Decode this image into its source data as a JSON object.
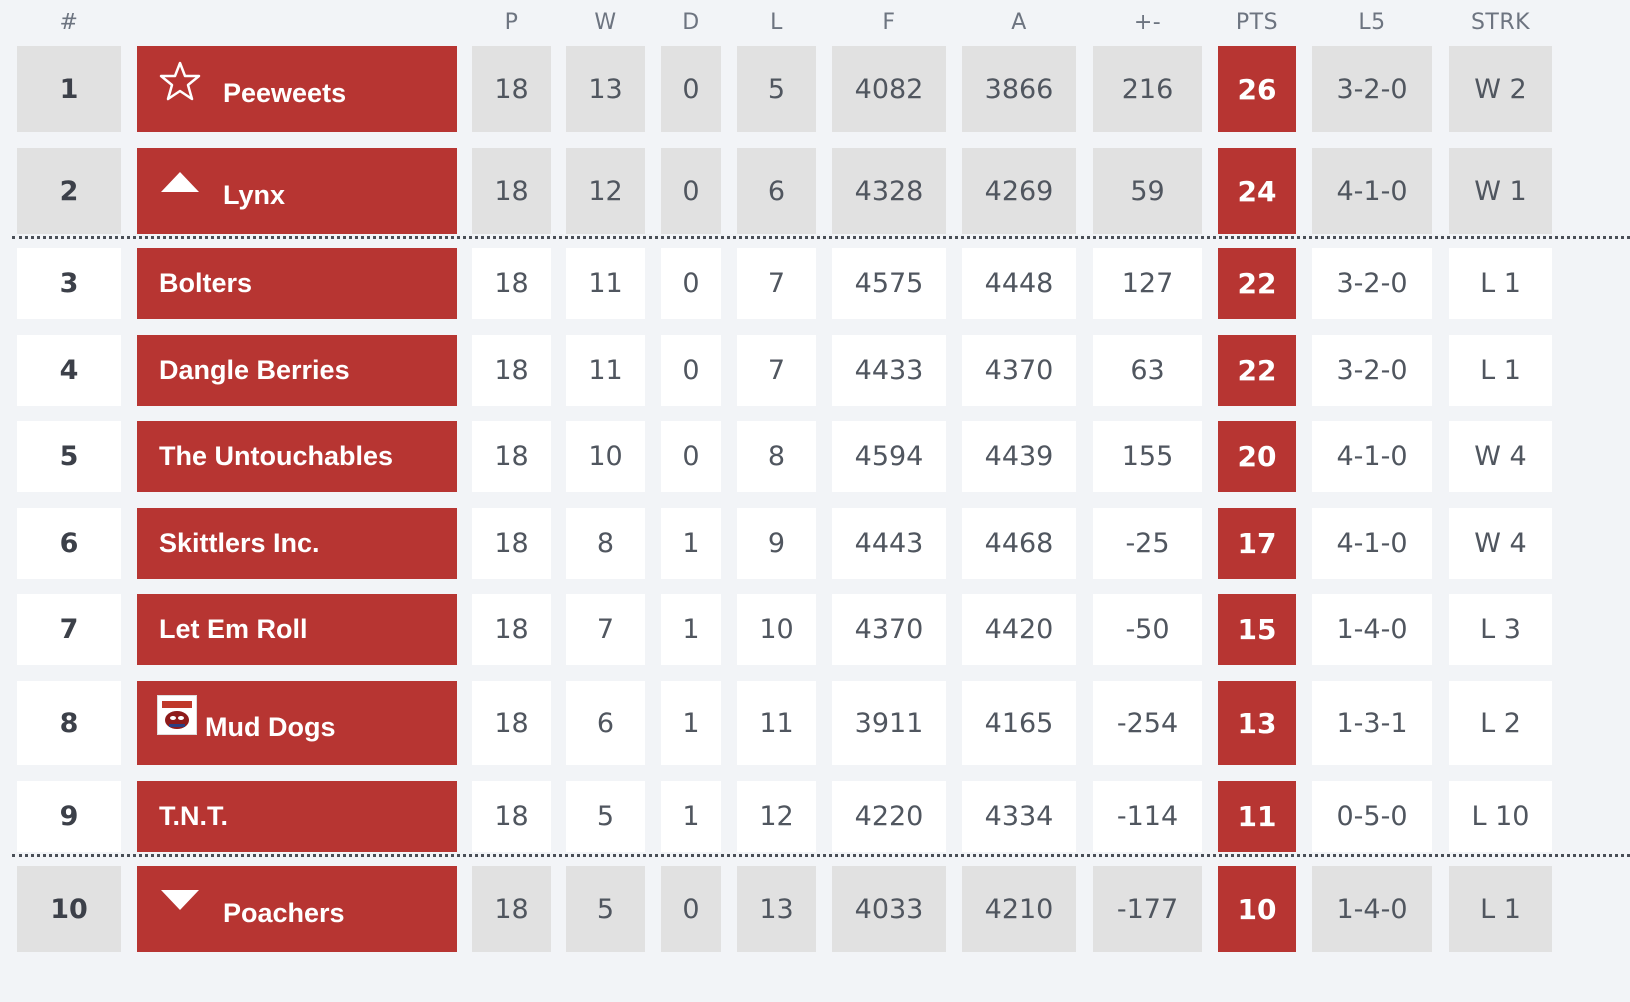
{
  "headers": {
    "rank": "#",
    "team": "",
    "p": "P",
    "w": "W",
    "d": "D",
    "l": "L",
    "f": "F",
    "a": "A",
    "diff": "+-",
    "pts": "PTS",
    "l5": "L5",
    "strk": "STRK"
  },
  "colors": {
    "team_red": "#b73532",
    "grey_row": "#e1e1e1",
    "white_row": "#ffffff"
  },
  "rows": [
    {
      "rank": "1",
      "team": "Peeweets",
      "icon": "star-outline-icon",
      "p": "18",
      "w": "13",
      "d": "0",
      "l": "5",
      "f": "4082",
      "a": "3866",
      "diff": "216",
      "pts": "26",
      "l5": "3-2-0",
      "strk": "W 2"
    },
    {
      "rank": "2",
      "team": "Lynx",
      "icon": "triangle-up-icon",
      "p": "18",
      "w": "12",
      "d": "0",
      "l": "6",
      "f": "4328",
      "a": "4269",
      "diff": "59",
      "pts": "24",
      "l5": "4-1-0",
      "strk": "W 1"
    },
    {
      "rank": "3",
      "team": "Bolters",
      "icon": "",
      "p": "18",
      "w": "11",
      "d": "0",
      "l": "7",
      "f": "4575",
      "a": "4448",
      "diff": "127",
      "pts": "22",
      "l5": "3-2-0",
      "strk": "L 1"
    },
    {
      "rank": "4",
      "team": "Dangle Berries",
      "icon": "",
      "p": "18",
      "w": "11",
      "d": "0",
      "l": "7",
      "f": "4433",
      "a": "4370",
      "diff": "63",
      "pts": "22",
      "l5": "3-2-0",
      "strk": "L 1"
    },
    {
      "rank": "5",
      "team": "The Untouchables",
      "icon": "",
      "p": "18",
      "w": "10",
      "d": "0",
      "l": "8",
      "f": "4594",
      "a": "4439",
      "diff": "155",
      "pts": "20",
      "l5": "4-1-0",
      "strk": "W 4"
    },
    {
      "rank": "6",
      "team": "Skittlers Inc.",
      "icon": "",
      "p": "18",
      "w": "8",
      "d": "1",
      "l": "9",
      "f": "4443",
      "a": "4468",
      "diff": "-25",
      "pts": "17",
      "l5": "4-1-0",
      "strk": "W 4"
    },
    {
      "rank": "7",
      "team": "Let Em Roll",
      "icon": "",
      "p": "18",
      "w": "7",
      "d": "1",
      "l": "10",
      "f": "4370",
      "a": "4420",
      "diff": "-50",
      "pts": "15",
      "l5": "1-4-0",
      "strk": "L 3"
    },
    {
      "rank": "8",
      "team": "Mud Dogs",
      "icon": "mud-dogs-logo-icon",
      "p": "18",
      "w": "6",
      "d": "1",
      "l": "11",
      "f": "3911",
      "a": "4165",
      "diff": "-254",
      "pts": "13",
      "l5": "1-3-1",
      "strk": "L 2"
    },
    {
      "rank": "9",
      "team": "T.N.T.",
      "icon": "",
      "p": "18",
      "w": "5",
      "d": "1",
      "l": "12",
      "f": "4220",
      "a": "4334",
      "diff": "-114",
      "pts": "11",
      "l5": "0-5-0",
      "strk": "L 10"
    },
    {
      "rank": "10",
      "team": "Poachers",
      "icon": "triangle-down-icon",
      "p": "18",
      "w": "5",
      "d": "0",
      "l": "13",
      "f": "4033",
      "a": "4210",
      "diff": "-177",
      "pts": "10",
      "l5": "1-4-0",
      "strk": "L 1"
    }
  ]
}
